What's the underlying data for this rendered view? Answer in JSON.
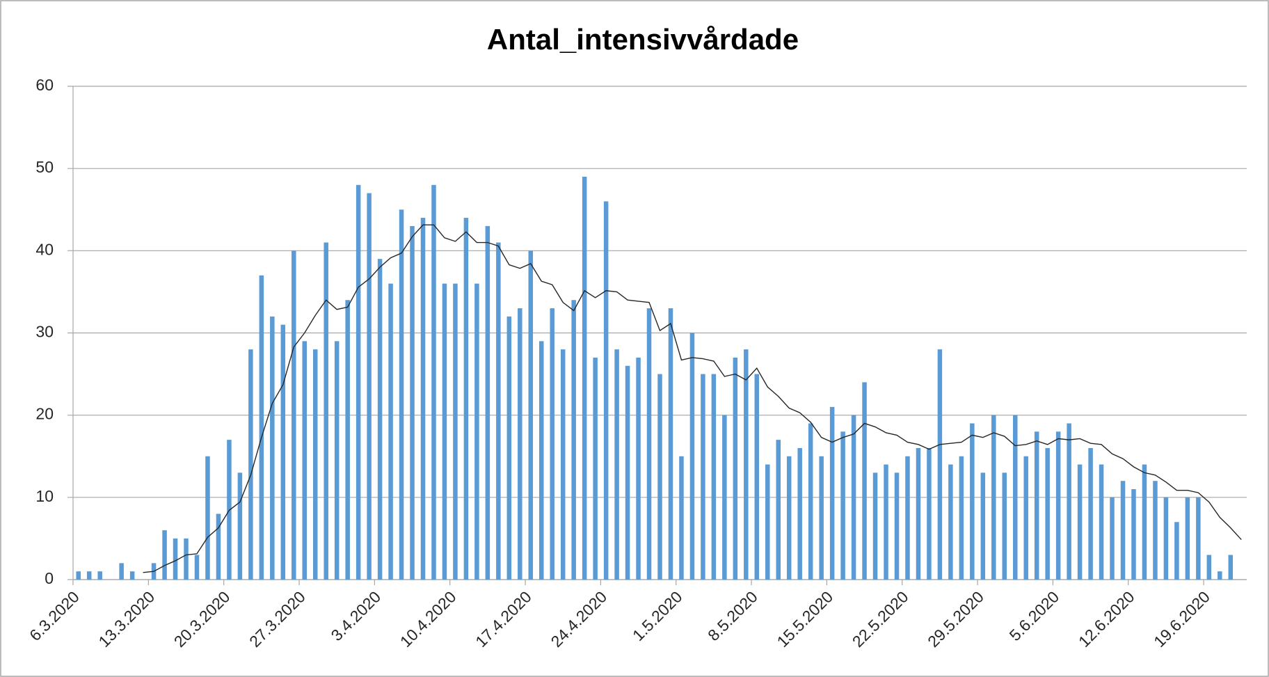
{
  "chart_data": {
    "type": "bar",
    "title": "Antal_intensivvårdade",
    "categories": [
      "6.3.2020",
      null,
      null,
      null,
      null,
      null,
      null,
      "13.3.2020",
      null,
      null,
      null,
      null,
      null,
      null,
      "20.3.2020",
      null,
      null,
      null,
      null,
      null,
      null,
      "27.3.2020",
      null,
      null,
      null,
      null,
      null,
      null,
      "3.4.2020",
      null,
      null,
      null,
      null,
      null,
      null,
      "10.4.2020",
      null,
      null,
      null,
      null,
      null,
      null,
      "17.4.2020",
      null,
      null,
      null,
      null,
      null,
      null,
      "24.4.2020",
      null,
      null,
      null,
      null,
      null,
      null,
      "1.5.2020",
      null,
      null,
      null,
      null,
      null,
      null,
      "8.5.2020",
      null,
      null,
      null,
      null,
      null,
      null,
      "15.5.2020",
      null,
      null,
      null,
      null,
      null,
      null,
      "22.5.2020",
      null,
      null,
      null,
      null,
      null,
      null,
      "29.5.2020",
      null,
      null,
      null,
      null,
      null,
      null,
      "5.6.2020",
      null,
      null,
      null,
      null,
      null,
      null,
      "12.6.2020",
      null,
      null,
      null,
      null,
      null,
      null,
      "19.6.2020",
      null,
      null,
      null
    ],
    "series": [
      {
        "type": "bar",
        "color": "#5b9bd5",
        "values": [
          1,
          1,
          1,
          0,
          2,
          1,
          0,
          2,
          6,
          5,
          5,
          3,
          15,
          8,
          17,
          13,
          28,
          37,
          32,
          31,
          40,
          29,
          28,
          41,
          29,
          34,
          48,
          47,
          39,
          36,
          45,
          43,
          44,
          48,
          36,
          36,
          44,
          36,
          43,
          41,
          32,
          33,
          40,
          29,
          33,
          28,
          34,
          49,
          27,
          46,
          28,
          26,
          27,
          33,
          25,
          33,
          15,
          30,
          25,
          25,
          20,
          27,
          28,
          25,
          14,
          17,
          15,
          16,
          19,
          15,
          21,
          18,
          20,
          24,
          13,
          14,
          13,
          15,
          16,
          16,
          28,
          14,
          15,
          19,
          13,
          20,
          13,
          20,
          15,
          18,
          16,
          18,
          19,
          14,
          16,
          14,
          10,
          12,
          11,
          14,
          12,
          10,
          7,
          10,
          10,
          3,
          1,
          3,
          0
        ]
      },
      {
        "type": "line",
        "color": "#262626",
        "values": [
          null,
          null,
          null,
          null,
          null,
          null,
          0.86,
          1.0,
          1.71,
          2.29,
          3.0,
          3.14,
          5.14,
          6.29,
          8.43,
          9.43,
          12.71,
          17.29,
          21.43,
          23.71,
          28.29,
          30,
          32.14,
          34,
          32.86,
          33.14,
          35.57,
          36.57,
          38,
          39.14,
          39.71,
          41.71,
          43.14,
          43.14,
          41.57,
          41.14,
          42.29,
          41,
          41,
          40.57,
          38.29,
          37.86,
          38.43,
          36.29,
          35.86,
          33.71,
          32.71,
          35.14,
          34.29,
          35.14,
          35,
          34,
          33.86,
          33.71,
          30.29,
          31.14,
          26.71,
          27,
          26.86,
          26.57,
          24.71,
          25,
          24.29,
          25.71,
          23.43,
          22.29,
          20.86,
          20.29,
          19.14,
          17.29,
          16.71,
          17.29,
          17.71,
          19,
          18.57,
          17.86,
          17.57,
          16.71,
          16.43,
          15.86,
          16.43,
          16.57,
          16.71,
          17.57,
          17.29,
          17.86,
          17.43,
          16.29,
          16.43,
          16.86,
          16.43,
          17.14,
          17,
          17.14,
          16.57,
          16.43,
          15.29,
          14.71,
          13.71,
          13,
          12.71,
          11.86,
          10.86,
          10.86,
          10.57,
          9.43,
          7.57,
          6.29,
          4.86
        ]
      }
    ],
    "ylim": [
      0,
      60
    ],
    "yticks": [
      0,
      10,
      20,
      30,
      40,
      50,
      60
    ],
    "grid": true
  }
}
